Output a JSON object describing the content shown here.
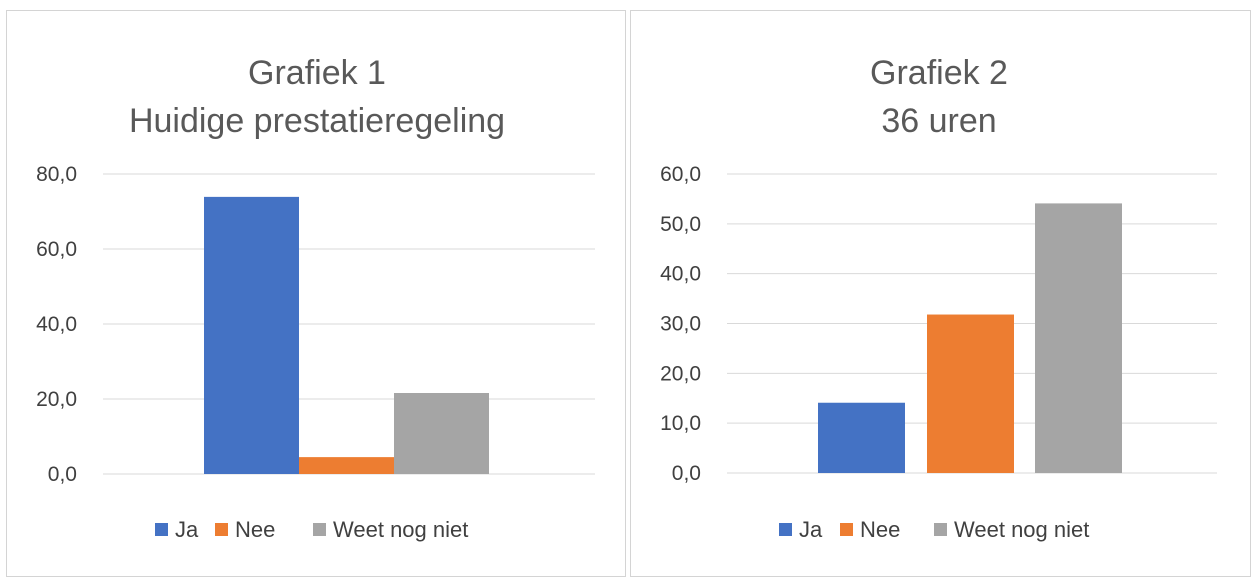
{
  "chart_data": [
    {
      "type": "bar",
      "title": "Grafiek 1",
      "subtitle": "Huidige prestatieregeling",
      "categories": [
        "Ja",
        "Nee",
        "Weet nog niet"
      ],
      "values": [
        73.9,
        4.5,
        21.6
      ],
      "colors": [
        "#4472c4",
        "#ed7d31",
        "#a5a5a5"
      ],
      "ylim": [
        0,
        80
      ],
      "yticks": [
        "0,0",
        "20,0",
        "40,0",
        "60,0",
        "80,0"
      ],
      "ytick_values": [
        0,
        20,
        40,
        60,
        80
      ],
      "legend": [
        "Ja",
        "Nee",
        "Weet nog niet"
      ],
      "legend_position": "bottom",
      "grid": true
    },
    {
      "type": "bar",
      "title": "Grafiek 2",
      "subtitle": "36 uren",
      "categories": [
        "Ja",
        "Nee",
        "Weet nog niet"
      ],
      "values": [
        14.1,
        31.8,
        54.1
      ],
      "colors": [
        "#4472c4",
        "#ed7d31",
        "#a5a5a5"
      ],
      "ylim": [
        0,
        60
      ],
      "yticks": [
        "0,0",
        "10,0",
        "20,0",
        "30,0",
        "40,0",
        "50,0",
        "60,0"
      ],
      "ytick_values": [
        0,
        10,
        20,
        30,
        40,
        50,
        60
      ],
      "legend": [
        "Ja",
        "Nee",
        "Weet nog niet"
      ],
      "legend_position": "bottom",
      "grid": true
    }
  ]
}
